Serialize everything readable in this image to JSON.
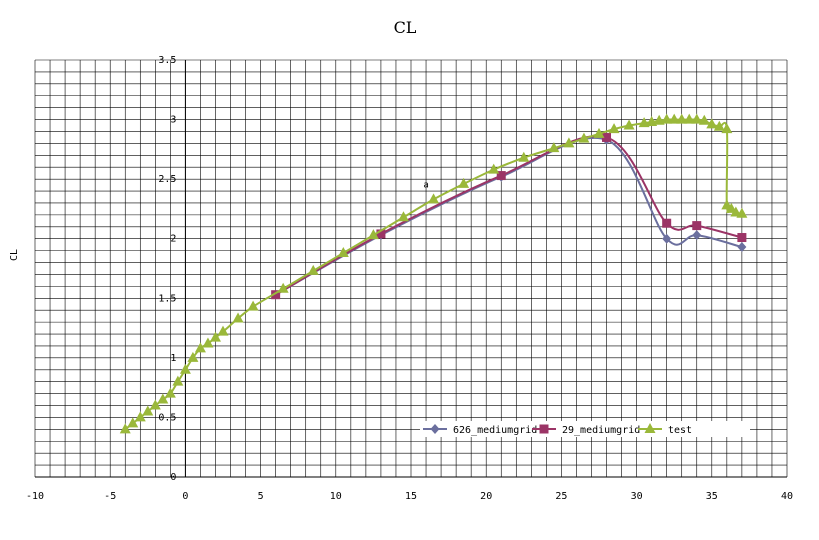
{
  "chart_data": {
    "type": "line",
    "title": "CL",
    "xlabel": "",
    "ylabel": "CL",
    "xlim": [
      -10,
      40
    ],
    "ylim": [
      0,
      3.5
    ],
    "x_ticks": [
      "-10",
      "-5",
      "0",
      "5",
      "10",
      "15",
      "20",
      "25",
      "30",
      "35",
      "40"
    ],
    "y_ticks": [
      "0",
      "0.5",
      "1",
      "1.5",
      "2",
      "2.5",
      "3",
      "3.5"
    ],
    "grid": true,
    "legend_position": "bottom-right",
    "annotations": [
      {
        "text": "a",
        "x": 16,
        "y": 2.43
      }
    ],
    "series": [
      {
        "name": "626_mediumgrid",
        "color": "#6b6f9e",
        "marker": "diamond",
        "x": [
          6,
          13,
          21,
          28,
          32,
          34,
          37
        ],
        "y": [
          1.53,
          2.03,
          2.52,
          2.83,
          2.0,
          2.03,
          1.93
        ]
      },
      {
        "name": "29_mediumgrid",
        "color": "#9b3466",
        "marker": "square",
        "x": [
          6,
          13,
          21,
          28,
          32,
          34,
          37
        ],
        "y": [
          1.53,
          2.04,
          2.53,
          2.85,
          2.13,
          2.11,
          2.01
        ]
      },
      {
        "name": "test",
        "color": "#9ab83a",
        "marker": "triangle",
        "x": [
          -4,
          -3.5,
          -3,
          -2.5,
          -2,
          -1.5,
          -1,
          -0.5,
          0,
          0.5,
          1,
          1.5,
          2,
          2.5,
          3.5,
          4.5,
          6.5,
          8.5,
          10.5,
          12.5,
          14.5,
          16.5,
          18.5,
          20.5,
          22.5,
          24.5,
          25.5,
          26.5,
          27.5,
          28.5,
          29.5,
          30.5,
          31,
          31.5,
          32,
          32.5,
          33,
          33.5,
          34,
          34.5,
          35,
          35.5,
          36,
          36,
          36.3,
          36.6,
          37
        ],
        "y": [
          0.4,
          0.45,
          0.5,
          0.55,
          0.6,
          0.65,
          0.7,
          0.8,
          0.9,
          1.0,
          1.08,
          1.12,
          1.17,
          1.22,
          1.33,
          1.43,
          1.58,
          1.73,
          1.88,
          2.03,
          2.18,
          2.33,
          2.46,
          2.58,
          2.68,
          2.76,
          2.8,
          2.84,
          2.88,
          2.92,
          2.95,
          2.97,
          2.98,
          2.99,
          3.0,
          3.0,
          3.0,
          3.0,
          3.0,
          2.99,
          2.96,
          2.94,
          2.92,
          2.28,
          2.25,
          2.22,
          2.21
        ]
      }
    ]
  }
}
